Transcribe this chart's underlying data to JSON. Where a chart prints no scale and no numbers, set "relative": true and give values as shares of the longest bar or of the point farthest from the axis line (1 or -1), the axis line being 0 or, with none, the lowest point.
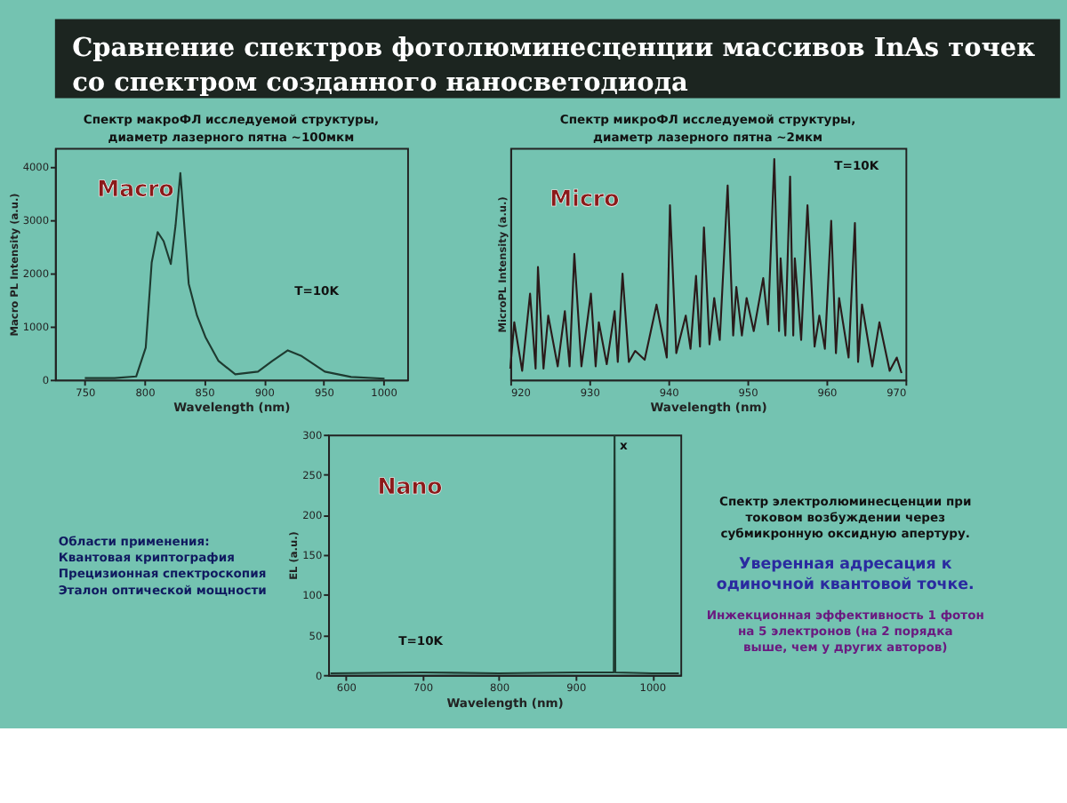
{
  "chart_data": [
    {
      "type": "other",
      "title": "Сравнение спектров фотолюминесценции массивов InAs точек со спектром созданного наносветодиода"
    },
    {
      "type": "line",
      "title": "Спектр макроФЛ исследуемой структуры,",
      "subtitle": "диаметр лазерного пятна ~100мкм",
      "xlabel": "Wavelength (nm)",
      "ylabel": "Macro PL Intensity (a.u.)",
      "color": "#1e3a30",
      "x": [
        750,
        775,
        793,
        801,
        806,
        811,
        816,
        822,
        826,
        830,
        837,
        844,
        851,
        862,
        876,
        895,
        907,
        920,
        931,
        951,
        973,
        1001
      ],
      "values": [
        30,
        30,
        60,
        600,
        2200,
        2770,
        2600,
        2170,
        2900,
        3880,
        1800,
        1200,
        800,
        350,
        100,
        150,
        350,
        550,
        450,
        150,
        50,
        20
      ],
      "xlim": [
        725,
        1020
      ],
      "xticks": [
        750,
        800,
        850,
        900,
        950,
        1000
      ],
      "ylim": [
        0,
        4350
      ],
      "yticks": [
        0,
        1000,
        2000,
        3000,
        4000
      ],
      "annotations": [
        "Macro",
        "T=10K"
      ]
    },
    {
      "type": "line",
      "title": "Спектр микроФЛ исследуемой структуры,",
      "subtitle": "диаметр лазерного пятна ~2мкм",
      "xlabel": "Wavelength (nm)",
      "ylabel": "MicroPL Intensity (a.u.)",
      "color": "#2a1a1a",
      "relative": true,
      "x": [
        920.0,
        920.5,
        921.5,
        922.5,
        923.2,
        923.5,
        924.2,
        924.8,
        926.0,
        926.9,
        927.5,
        928.1,
        929.0,
        930.2,
        930.8,
        931.2,
        932.2,
        933.2,
        933.6,
        934.2,
        935.0,
        935.8,
        937.0,
        938.5,
        939.8,
        940.2,
        941.0,
        942.2,
        942.8,
        943.5,
        944.0,
        944.5,
        945.2,
        945.8,
        946.5,
        947.5,
        948.2,
        948.6,
        949.3,
        949.9,
        950.8,
        952.0,
        952.6,
        953.4,
        954.0,
        954.2,
        954.8,
        955.4,
        955.8,
        956.0,
        956.8,
        957.6,
        958.5,
        959.1,
        959.8,
        960.6,
        961.2,
        961.6,
        962.8,
        963.6,
        964.0,
        964.5,
        965.8,
        966.7,
        968.0,
        968.9,
        969.5
      ],
      "values": [
        0.05,
        0.26,
        0.04,
        0.39,
        0.05,
        0.51,
        0.05,
        0.29,
        0.06,
        0.31,
        0.06,
        0.57,
        0.06,
        0.39,
        0.06,
        0.26,
        0.07,
        0.31,
        0.08,
        0.48,
        0.08,
        0.13,
        0.09,
        0.34,
        0.1,
        0.79,
        0.12,
        0.29,
        0.14,
        0.47,
        0.15,
        0.69,
        0.16,
        0.37,
        0.18,
        0.88,
        0.2,
        0.42,
        0.2,
        0.37,
        0.22,
        0.46,
        0.25,
        1.0,
        0.22,
        0.55,
        0.2,
        0.92,
        0.2,
        0.55,
        0.18,
        0.79,
        0.15,
        0.29,
        0.14,
        0.72,
        0.12,
        0.37,
        0.1,
        0.71,
        0.08,
        0.34,
        0.06,
        0.26,
        0.04,
        0.1,
        0.03
      ],
      "xlim": [
        920,
        970
      ],
      "xticks": [
        920,
        930,
        940,
        950,
        960,
        970
      ],
      "annotations": [
        "Micro",
        "T=10K"
      ]
    },
    {
      "type": "other",
      "annotations": [
        "Области применения:",
        "Квантовая криптография",
        "Прецизионная спектроскопия",
        "Эталон оптической мощности"
      ]
    },
    {
      "type": "line",
      "xlabel": "Wavelength (nm)",
      "ylabel": "EL (a.u.)",
      "color": "#1e3a30",
      "x": [
        580,
        700,
        800,
        900,
        945,
        950,
        951,
        952,
        1000,
        1035
      ],
      "values": [
        2,
        3,
        2,
        3,
        3,
        3,
        298,
        3,
        2,
        2
      ],
      "xlim": [
        577,
        1037
      ],
      "xticks": [
        600,
        700,
        800,
        900,
        1000
      ],
      "ylim": [
        0,
        300
      ],
      "yticks": [
        0,
        50,
        100,
        150,
        200,
        250,
        300
      ],
      "annotations": [
        "Nano",
        "T=10K",
        {
          "text": "x",
          "x": 951,
          "y": 298
        }
      ]
    },
    {
      "type": "other",
      "annotations": [
        "Спектр электролюминесценции при токовом возбуждении через субмикронную оксидную апертуру.",
        "Уверенная адресация к одиночной квантовой точке.",
        "Инжекционная эффективность 1 фотон на 5 электронов (на 2 порядка выше, чем у других авторов)"
      ]
    }
  ]
}
